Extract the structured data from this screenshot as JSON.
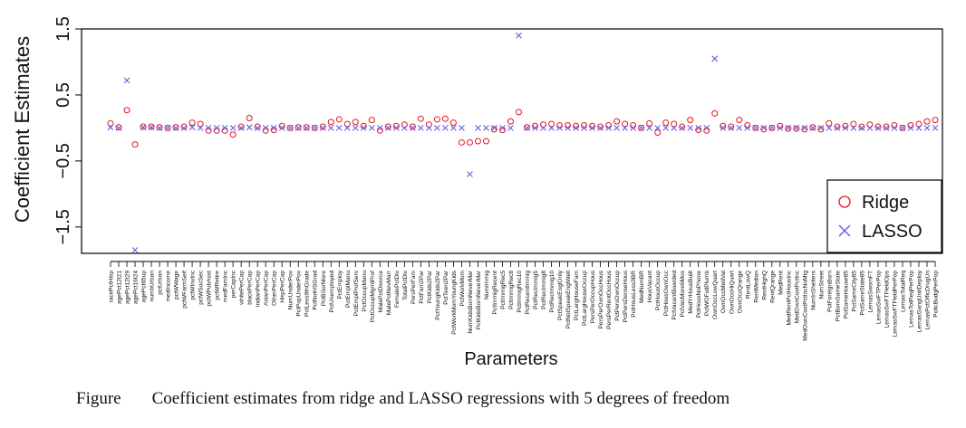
{
  "chart_data": {
    "type": "scatter",
    "xlabel": "Parameters",
    "ylabel": "Coefficient Estimates",
    "ylim": [
      -1.9,
      1.5
    ],
    "yticks": [
      1.5,
      0.5,
      -0.5,
      -1.5
    ],
    "ytick_labels": [
      "1.5",
      "0.5",
      "−0.5",
      "−1.5"
    ],
    "grid": false,
    "legend_position": "bottom-right",
    "categories": [
      "racePctHisp",
      "agePct12t21",
      "agePct12t29",
      "agePct16t24",
      "agePct65up",
      "numbUrban",
      "pctUrban",
      "medIncome",
      "pctWWage",
      "pctWFarmSelf",
      "pctWInvInc",
      "pctWSocSec",
      "pctWPubAsst",
      "pctWRetire",
      "medFamInc",
      "perCapInc",
      "whitePerCap",
      "blackPerCap",
      "indianPerCap",
      "AsianPerCap",
      "OtherPerCap",
      "HispPerCap",
      "NumUnderPov",
      "PctPopUnderPov",
      "PctLess9thGrade",
      "PctNotHSGrad",
      "PctBSorMore",
      "PctUnemployed",
      "PctEmploy",
      "PctEmplManu",
      "PctEmplProfServ",
      "PctOccupManu",
      "PctOccupMgmtProf",
      "MalePctDivorce",
      "MalePctNevMarr",
      "FemalePctDiv",
      "TotalPctDiv",
      "PersPerFam",
      "PctFam2Par",
      "PctKids2Par",
      "PctYoungKids2Par",
      "PctTeen2Par",
      "PctWorkMomYoungKids",
      "PctWorkMom",
      "NumKidsBornNeverMar",
      "PctKidsBornNeverMar",
      "NumImmig",
      "PctImmigRecent",
      "PctImmigRec5",
      "PctImmigRec8",
      "PctImmigRec10",
      "PctRecentImmig",
      "PctRecImmig5",
      "PctRecImmig8",
      "PctRecImmig10",
      "PctSpeakEnglOnly",
      "PctNotSpeakEnglWell",
      "PctLargHouseFam",
      "PctLargHouseOccup",
      "PersPerOccupHous",
      "PersPerOwnOccHous",
      "PersPerRentOccHous",
      "PctPersOwnOccup",
      "PctPersDenseHous",
      "PctHousLess3BR",
      "MedNumBR",
      "HousVacant",
      "PctHousOccup",
      "PctHousOwnOcc",
      "PctVacantBoarded",
      "PctVacMore6Mos",
      "MedYrHousBuilt",
      "PctHousNoPhone",
      "PctWOFullPlumb",
      "OwnOccLowQuart",
      "OwnOccMedVal",
      "OwnOccHiQuart",
      "OwnOccQrange",
      "RentLowQ",
      "RentMedian",
      "RentHighQ",
      "RentQrange",
      "MedRent",
      "MedRentPctHousInc",
      "MedOwnCostPctInc",
      "MedOwnCostPctIncNoMtg",
      "NumInShelters",
      "NumStreet",
      "PctForeignBorn",
      "PctBornSameState",
      "PctSameHouse85",
      "PctSameCity85",
      "PctSameState85",
      "LemasSwornFT",
      "LemasSwFTPerPop",
      "LemasSwFTFieldOps",
      "LemasSwFTFieldPerPop",
      "LemasTotalReq",
      "LemasTotReqPerPop",
      "LemasGangUnitDeploy",
      "LemasPctOfficDrugUn",
      "PolicBudgPerPop"
    ],
    "series": [
      {
        "name": "Ridge",
        "color": "#e8131b",
        "marker": "circle",
        "values": [
          0.07,
          0.01,
          0.27,
          -0.25,
          0.02,
          0.02,
          0.01,
          0.0,
          0.01,
          0.02,
          0.08,
          0.06,
          -0.04,
          -0.04,
          -0.04,
          -0.1,
          0.02,
          0.15,
          0.02,
          -0.04,
          -0.03,
          0.03,
          0.0,
          0.01,
          0.01,
          0.0,
          0.02,
          0.09,
          0.13,
          0.06,
          0.09,
          0.03,
          0.12,
          -0.04,
          0.02,
          0.03,
          0.05,
          0.02,
          0.14,
          0.05,
          0.13,
          0.14,
          0.08,
          -0.22,
          -0.22,
          -0.2,
          -0.2,
          -0.02,
          -0.03,
          0.1,
          0.24,
          0.01,
          0.03,
          0.05,
          0.06,
          0.04,
          0.04,
          0.03,
          0.04,
          0.03,
          0.02,
          0.04,
          0.1,
          0.06,
          0.04,
          0.0,
          0.07,
          -0.07,
          0.08,
          0.06,
          0.02,
          0.12,
          -0.03,
          -0.04,
          0.22,
          0.03,
          0.02,
          0.12,
          0.04,
          0.0,
          -0.02,
          0.0,
          0.03,
          -0.01,
          -0.01,
          -0.02,
          0.01,
          -0.02,
          0.07,
          0.02,
          0.03,
          0.06,
          0.02,
          0.05,
          0.02,
          0.02,
          0.04,
          0.0,
          0.04,
          0.06,
          0.1,
          0.12
        ]
      },
      {
        "name": "LASSO",
        "color": "#6a5ce8",
        "marker": "x",
        "values": [
          0.01,
          0.0,
          0.72,
          -1.85,
          0.01,
          0.01,
          0.0,
          0.0,
          0.0,
          0.0,
          0.01,
          0.0,
          0.0,
          0.0,
          0.0,
          0.0,
          0.0,
          0.01,
          0.0,
          0.0,
          0.0,
          0.0,
          0.0,
          0.0,
          0.0,
          0.0,
          0.0,
          0.0,
          0.0,
          0.0,
          0.0,
          0.0,
          0.0,
          0.0,
          0.0,
          0.0,
          0.0,
          0.0,
          0.0,
          0.0,
          0.0,
          0.0,
          0.0,
          0.0,
          -0.7,
          0.0,
          0.0,
          0.0,
          0.0,
          0.0,
          1.4,
          0.0,
          0.0,
          0.0,
          0.0,
          0.0,
          0.0,
          0.0,
          0.0,
          0.0,
          0.0,
          0.0,
          0.0,
          0.0,
          0.0,
          0.0,
          0.0,
          0.0,
          0.0,
          0.0,
          0.0,
          0.0,
          0.0,
          0.0,
          1.05,
          0.0,
          0.0,
          0.0,
          0.0,
          0.0,
          0.0,
          0.0,
          0.0,
          0.0,
          0.0,
          0.0,
          0.0,
          0.0,
          0.0,
          0.0,
          0.0,
          0.0,
          0.0,
          0.0,
          0.0,
          0.0,
          0.0,
          0.0,
          0.0,
          0.0,
          0.0,
          0.0
        ]
      }
    ]
  },
  "caption": {
    "label": "Figure",
    "text": "Coefficient estimates from ridge and LASSO regressions with 5 degrees of freedom"
  }
}
